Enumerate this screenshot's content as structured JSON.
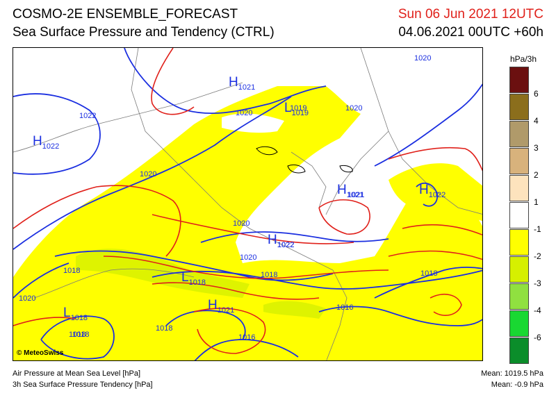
{
  "header": {
    "title_line1": "COSMO-2E ENSEMBLE_FORECAST",
    "title_line2": "Sea Surface Pressure and Tendency (CTRL)",
    "valid_time": "Sun 06 Jun 2021 12UTC",
    "run_time": "04.06.2021 00UTC +60h"
  },
  "legend": {
    "unit": "hPa/3h",
    "classes": [
      {
        "label": "6",
        "color": "#6b1010"
      },
      {
        "label": "4",
        "color": "#8b6e1c"
      },
      {
        "label": "3",
        "color": "#b09a6a"
      },
      {
        "label": "2",
        "color": "#d8b27c"
      },
      {
        "label": "1",
        "color": "#fde3bd"
      },
      {
        "label": "-1",
        "color": "#ffffff"
      },
      {
        "label": "-2",
        "color": "#ffff00"
      },
      {
        "label": "-3",
        "color": "#d6f000"
      },
      {
        "label": "-4",
        "color": "#90e040"
      },
      {
        "label": "-6",
        "color": "#19d832"
      },
      {
        "label": "",
        "color": "#0b8d2a"
      }
    ]
  },
  "map": {
    "pressure_labels": [
      "1020",
      "1022",
      "1020",
      "1019",
      "1020",
      "1020",
      "1020",
      "1022",
      "1021",
      "1020",
      "1018",
      "1018",
      "1020",
      "1018",
      "1018",
      "1018",
      "1016",
      "1018",
      "1016"
    ],
    "centers": [
      {
        "letter": "H",
        "value": "1021"
      },
      {
        "letter": "H",
        "value": "1022"
      },
      {
        "letter": "L",
        "value": "1019"
      },
      {
        "letter": "H",
        "value": "1021"
      },
      {
        "letter": "H",
        "value": "1022"
      },
      {
        "letter": "H",
        "value": "1022"
      },
      {
        "letter": "L",
        "value": "1018"
      },
      {
        "letter": "H",
        "value": "1021"
      },
      {
        "letter": "L",
        "value": "1018"
      }
    ],
    "copyright": "© MeteoSwiss"
  },
  "footer": {
    "left_line1": "Air Pressure at Mean Sea Level [hPa]",
    "left_line2": "3h Sea Surface Pressure Tendency [hPa]",
    "right_line1": "Mean: 1019.5 hPa",
    "right_line2": "Mean:   -0.9 hPa"
  }
}
